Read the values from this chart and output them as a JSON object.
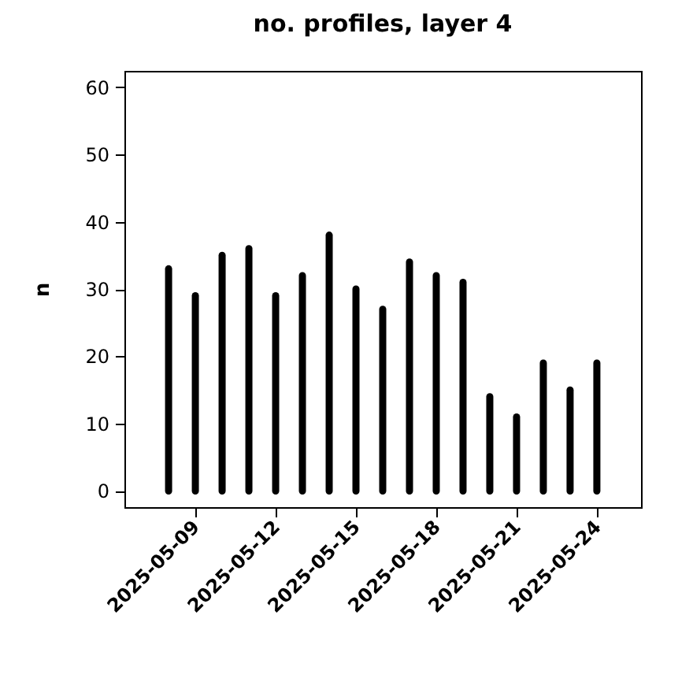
{
  "chart_data": {
    "type": "bar",
    "title": "no. profiles, layer 4",
    "ylabel": "n",
    "x": [
      "2025-05-08",
      "2025-05-09",
      "2025-05-10",
      "2025-05-11",
      "2025-05-12",
      "2025-05-13",
      "2025-05-14",
      "2025-05-15",
      "2025-05-16",
      "2025-05-17",
      "2025-05-18",
      "2025-05-19",
      "2025-05-20",
      "2025-05-21",
      "2025-05-22",
      "2025-05-23",
      "2025-05-24"
    ],
    "values": [
      33,
      29,
      35,
      36,
      29,
      32,
      38,
      30,
      27,
      34,
      32,
      31,
      14,
      11,
      19,
      15,
      19
    ],
    "color": "#000000",
    "xlim": [
      "2025-05-06T08:24",
      "2025-05-25T15:36"
    ],
    "xticks": [
      "2025-05-09",
      "2025-05-12",
      "2025-05-15",
      "2025-05-18",
      "2025-05-21",
      "2025-05-24"
    ],
    "ylim": [
      -2.4,
      62.4
    ],
    "yticks": [
      0,
      10,
      20,
      30,
      40,
      50,
      60
    ]
  }
}
